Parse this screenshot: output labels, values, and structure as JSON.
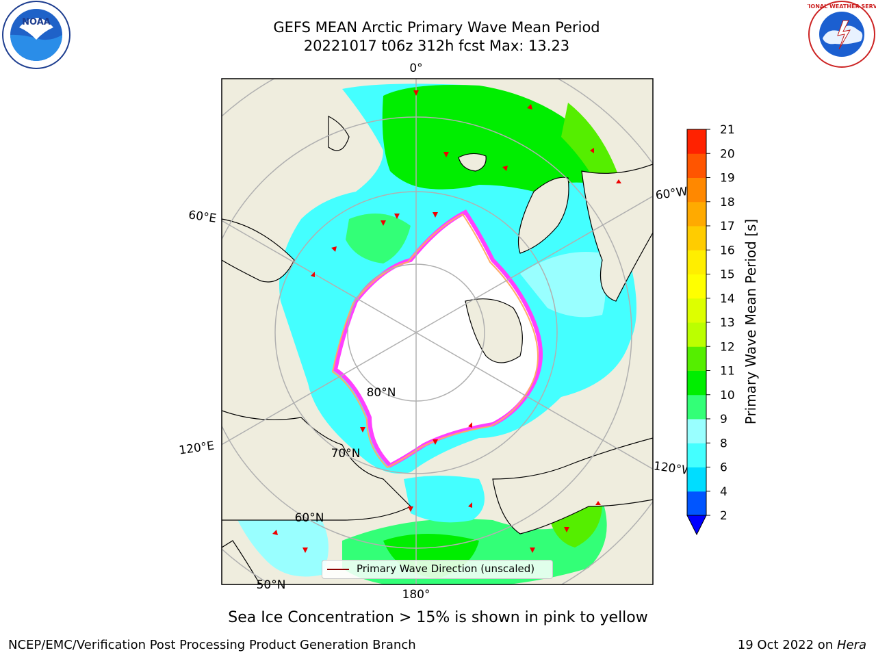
{
  "header": {
    "title_line1": "GEFS MEAN Arctic Primary Wave Mean Period",
    "title_line2": "20221017 t06z 312h fcst   Max: 13.23"
  },
  "map": {
    "projection": "north polar stereographic",
    "lon_labels": {
      "l0": "0°",
      "l60e": "60°E",
      "l120e": "120°E",
      "l180": "180°",
      "l60w": "60°W",
      "l120w": "120°W"
    },
    "lat_labels": {
      "l80": "80°N",
      "l70": "70°N",
      "l60": "60°N",
      "l50": "50°N"
    },
    "legend": {
      "label": "Primary Wave Direction (unscaled)"
    },
    "colors": {
      "land": "#efedde",
      "ice": "#ffffff",
      "ice_edge": "#ff40ff",
      "arrow": "#ee0000"
    }
  },
  "colorbar": {
    "label": "Primary Wave Mean Period [s]",
    "ticks": [
      "2",
      "4",
      "6",
      "8",
      "9",
      "10",
      "11",
      "12",
      "13",
      "14",
      "15",
      "16",
      "17",
      "18",
      "19",
      "20",
      "21"
    ],
    "colors": [
      "#0055ff",
      "#00ddff",
      "#44ffff",
      "#99ffff",
      "#33ff77",
      "#00ee00",
      "#55ee00",
      "#bbff00",
      "#ddff00",
      "#ffff00",
      "#ffee00",
      "#ffcc00",
      "#ffaa00",
      "#ff8800",
      "#ff5500",
      "#ff2200",
      "#ff0000"
    ],
    "extend_color": "#0000ff"
  },
  "notes": {
    "ice": "Sea Ice Concentration > 15% is shown in pink to yellow"
  },
  "footer": {
    "left": "NCEP/EMC/Verification Post Processing Product Generation Branch",
    "right_date": "19 Oct 2022 on ",
    "right_host": "Hera"
  },
  "logos": {
    "left": "NOAA",
    "right": "NATIONAL WEATHER SERVICE"
  }
}
